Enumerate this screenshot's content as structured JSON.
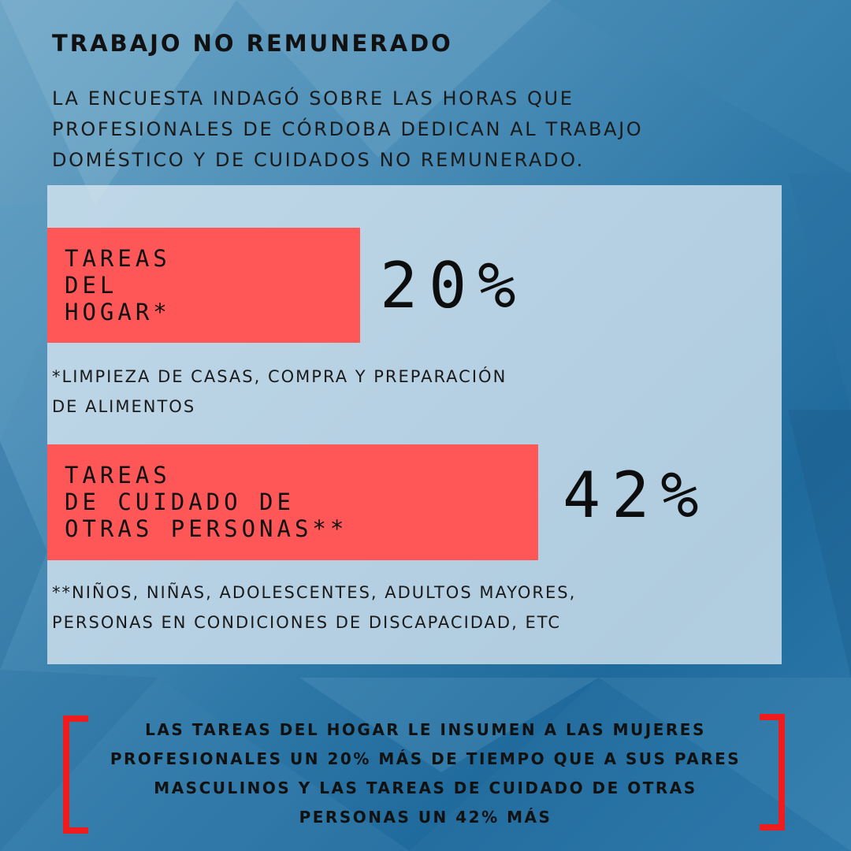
{
  "title": "TRABAJO NO REMUNERADO",
  "intro": "LA ENCUESTA INDAGÓ SOBRE LAS HORAS QUE PROFESIONALES DE CÓRDOBA DEDICAN AL TRABAJO DOMÉSTICO Y DE CUIDADOS NO REMUNERADO.",
  "stats": [
    {
      "label": "TAREAS\nDEL\nHOGAR*",
      "value": "20%",
      "footnote": "*LIMPIEZA DE CASAS, COMPRA Y PREPARACIÓN\nDE ALIMENTOS"
    },
    {
      "label": "TAREAS\nDE CUIDADO DE\nOTRAS PERSONAS**",
      "value": "42%",
      "footnote": "**NIÑOS, NIÑAS, ADOLESCENTES, ADULTOS MAYORES,\nPERSONAS EN CONDICIONES DE DISCAPACIDAD, ETC"
    }
  ],
  "conclusion": "LAS TAREAS DEL HOGAR LE INSUMEN A LAS MUJERES PROFESIONALES UN 20% MÁS DE TIEMPO QUE A SUS PARES MASCULINOS Y LAS TAREAS DE CUIDADO DE OTRAS PERSONAS UN 42% MÁS",
  "colors": {
    "accent_box": "#ff5757",
    "bracket": "#ee1c1c",
    "text": "#111111"
  }
}
